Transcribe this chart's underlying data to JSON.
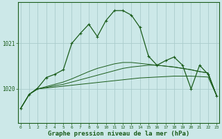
{
  "xlabel": "Graphe pression niveau de la mer (hPa)",
  "bg_color": "#cce8e8",
  "grid_color": "#aacccc",
  "line_color": "#1a5c1a",
  "x_ticks": [
    0,
    1,
    2,
    3,
    4,
    5,
    6,
    7,
    8,
    9,
    10,
    11,
    12,
    13,
    14,
    15,
    16,
    17,
    18,
    19,
    20,
    21,
    22,
    23
  ],
  "y_ticks": [
    1020,
    1021
  ],
  "ylim": [
    1019.25,
    1021.9
  ],
  "xlim": [
    -0.3,
    23.3
  ],
  "main_series": [
    1019.57,
    1019.88,
    1020.02,
    1020.25,
    1020.32,
    1020.42,
    1021.0,
    1021.22,
    1021.42,
    1021.15,
    1021.5,
    1021.72,
    1021.72,
    1021.62,
    1021.35,
    1020.72,
    1020.52,
    1020.62,
    1020.7,
    1020.52,
    1020.0,
    1020.52,
    1020.32,
    1019.85
  ],
  "flat1": [
    1019.57,
    1019.88,
    1020.0,
    1020.02,
    1020.04,
    1020.06,
    1020.08,
    1020.1,
    1020.12,
    1020.14,
    1020.16,
    1020.18,
    1020.2,
    1020.22,
    1020.24,
    1020.25,
    1020.26,
    1020.27,
    1020.28,
    1020.28,
    1020.28,
    1020.27,
    1020.26,
    1019.85
  ],
  "flat2": [
    1019.57,
    1019.88,
    1020.0,
    1020.03,
    1020.07,
    1020.1,
    1020.15,
    1020.2,
    1020.25,
    1020.3,
    1020.35,
    1020.4,
    1020.45,
    1020.48,
    1020.5,
    1020.52,
    1020.52,
    1020.5,
    1020.48,
    1020.45,
    1020.42,
    1020.38,
    1020.35,
    1019.85
  ],
  "flat3": [
    1019.57,
    1019.88,
    1020.0,
    1020.05,
    1020.1,
    1020.15,
    1020.22,
    1020.3,
    1020.38,
    1020.45,
    1020.5,
    1020.55,
    1020.58,
    1020.58,
    1020.56,
    1020.54,
    1020.52,
    1020.5,
    1020.48,
    1020.45,
    1020.42,
    1020.38,
    1020.35,
    1019.85
  ]
}
